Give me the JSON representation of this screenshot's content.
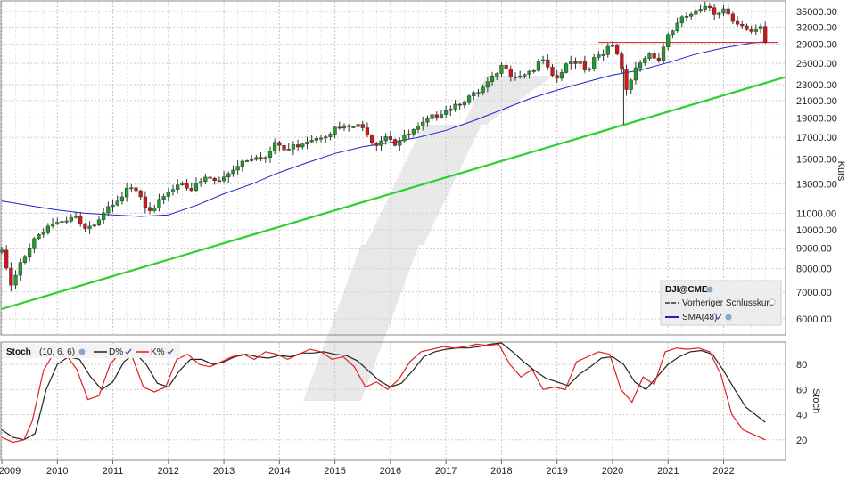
{
  "chart_data": [
    {
      "type": "candlestick",
      "symbol": "DJI@CME",
      "ylabel": "Kurs",
      "scale": "log",
      "ylim": [
        5500,
        37000
      ],
      "y_ticks": [
        6000,
        7000,
        8000,
        9000,
        10000,
        11000,
        13000,
        15000,
        17000,
        19000,
        21000,
        23000,
        26000,
        29000,
        32000,
        35000
      ],
      "y_tick_labels": [
        "6000.00",
        "7000.00",
        "8000.00",
        "9000.00",
        "10000.00",
        "11000.00",
        "13000.00",
        "15000.00",
        "17000.00",
        "19000.00",
        "21000.00",
        "23000.00",
        "26000.00",
        "29000.00",
        "32000.00",
        "35000.00"
      ],
      "x_labels": [
        "2009",
        "2010",
        "2011",
        "2012",
        "2013",
        "2014",
        "2015",
        "2016",
        "2017",
        "2018",
        "2019",
        "2020",
        "2021",
        "2022"
      ],
      "xlim": [
        2009.0,
        2023.1
      ],
      "up_color": "#1f9e2a",
      "down_color": "#d81418",
      "close_anchors": [
        [
          2009.0,
          8800
        ],
        [
          2009.18,
          7100
        ],
        [
          2009.35,
          8400
        ],
        [
          2009.6,
          9600
        ],
        [
          2009.9,
          10400
        ],
        [
          2010.1,
          10300
        ],
        [
          2010.35,
          10800
        ],
        [
          2010.45,
          9900
        ],
        [
          2010.6,
          10100
        ],
        [
          2010.9,
          11500
        ],
        [
          2011.3,
          12600
        ],
        [
          2011.45,
          12400
        ],
        [
          2011.6,
          11200
        ],
        [
          2011.72,
          10900
        ],
        [
          2011.9,
          12200
        ],
        [
          2012.25,
          13200
        ],
        [
          2012.42,
          12600
        ],
        [
          2012.7,
          13500
        ],
        [
          2012.9,
          13100
        ],
        [
          2013.3,
          14800
        ],
        [
          2013.6,
          15400
        ],
        [
          2013.75,
          15100
        ],
        [
          2013.95,
          16500
        ],
        [
          2014.1,
          15700
        ],
        [
          2014.5,
          16800
        ],
        [
          2014.8,
          17300
        ],
        [
          2014.99,
          17800
        ],
        [
          2015.4,
          18100
        ],
        [
          2015.6,
          17500
        ],
        [
          2015.7,
          16300
        ],
        [
          2015.95,
          17400
        ],
        [
          2016.08,
          16400
        ],
        [
          2016.5,
          17900
        ],
        [
          2016.9,
          19700
        ],
        [
          2017.2,
          20700
        ],
        [
          2017.6,
          21900
        ],
        [
          2017.95,
          24700
        ],
        [
          2018.05,
          26100
        ],
        [
          2018.2,
          24100
        ],
        [
          2018.55,
          25000
        ],
        [
          2018.75,
          26400
        ],
        [
          2018.95,
          23300
        ],
        [
          2019.2,
          25900
        ],
        [
          2019.4,
          26600
        ],
        [
          2019.55,
          24800
        ],
        [
          2019.65,
          26900
        ],
        [
          2019.95,
          28500
        ],
        [
          2020.05,
          28300
        ],
        [
          2020.13,
          26000
        ],
        [
          2020.25,
          22000
        ],
        [
          2020.45,
          25800
        ],
        [
          2020.7,
          27800
        ],
        [
          2020.83,
          26500
        ],
        [
          2020.99,
          30600
        ],
        [
          2021.3,
          33900
        ],
        [
          2021.55,
          34900
        ],
        [
          2021.75,
          35800
        ],
        [
          2021.85,
          34500
        ],
        [
          2022.0,
          36000
        ],
        [
          2022.15,
          33400
        ],
        [
          2022.3,
          33000
        ],
        [
          2022.45,
          31000
        ],
        [
          2022.55,
          30800
        ],
        [
          2022.65,
          32200
        ],
        [
          2022.75,
          29000
        ]
      ],
      "sma": {
        "name": "SMA(48)",
        "color": "#2222cc",
        "points": [
          [
            2009.0,
            11800
          ],
          [
            2009.5,
            11500
          ],
          [
            2010.0,
            11200
          ],
          [
            2010.5,
            11000
          ],
          [
            2011.0,
            10900
          ],
          [
            2011.5,
            10800
          ],
          [
            2012.0,
            10900
          ],
          [
            2012.5,
            11500
          ],
          [
            2013.0,
            12300
          ],
          [
            2013.5,
            13000
          ],
          [
            2014.0,
            13900
          ],
          [
            2014.5,
            14700
          ],
          [
            2015.0,
            15500
          ],
          [
            2015.5,
            16100
          ],
          [
            2016.0,
            16500
          ],
          [
            2016.5,
            17000
          ],
          [
            2017.0,
            17700
          ],
          [
            2017.5,
            18700
          ],
          [
            2018.0,
            19900
          ],
          [
            2018.5,
            21200
          ],
          [
            2019.0,
            22300
          ],
          [
            2019.5,
            23300
          ],
          [
            2020.0,
            24300
          ],
          [
            2020.5,
            25000
          ],
          [
            2021.0,
            26100
          ],
          [
            2021.5,
            27400
          ],
          [
            2022.0,
            28400
          ],
          [
            2022.5,
            29200
          ],
          [
            2022.75,
            29400
          ]
        ]
      },
      "trendline": {
        "color": "#2fcf2f",
        "from": [
          2009.0,
          6350
        ],
        "to": [
          2023.1,
          24000
        ]
      },
      "previous_close": {
        "name": "Vorheriger Schlusskurs",
        "color": "#d81418",
        "value": 29300,
        "from_x": 2019.75
      },
      "legend": {
        "title": "DJI@CME",
        "items": [
          "Vorheriger Schlusskurs",
          "SMA(48)"
        ]
      }
    },
    {
      "type": "line",
      "title": "Stoch",
      "params": "(10, 6, 6)",
      "ylabel": "Stoch",
      "ylim": [
        5,
        97
      ],
      "y_ticks": [
        20,
        40,
        60,
        80
      ],
      "series": [
        {
          "name": "D%",
          "color": "#222222",
          "points": [
            [
              2009.0,
              28
            ],
            [
              2009.2,
              22
            ],
            [
              2009.4,
              20
            ],
            [
              2009.6,
              25
            ],
            [
              2009.8,
              60
            ],
            [
              2010.0,
              80
            ],
            [
              2010.2,
              86
            ],
            [
              2010.4,
              84
            ],
            [
              2010.6,
              70
            ],
            [
              2010.8,
              60
            ],
            [
              2011.0,
              66
            ],
            [
              2011.2,
              82
            ],
            [
              2011.4,
              89
            ],
            [
              2011.6,
              80
            ],
            [
              2011.8,
              65
            ],
            [
              2012.0,
              62
            ],
            [
              2012.2,
              75
            ],
            [
              2012.4,
              84
            ],
            [
              2012.6,
              84
            ],
            [
              2012.8,
              80
            ],
            [
              2013.0,
              82
            ],
            [
              2013.2,
              86
            ],
            [
              2013.4,
              88
            ],
            [
              2013.6,
              86
            ],
            [
              2013.8,
              85
            ],
            [
              2014.0,
              87
            ],
            [
              2014.2,
              86
            ],
            [
              2014.4,
              89
            ],
            [
              2014.6,
              89
            ],
            [
              2014.8,
              90
            ],
            [
              2015.0,
              88
            ],
            [
              2015.2,
              87
            ],
            [
              2015.4,
              83
            ],
            [
              2015.6,
              75
            ],
            [
              2015.8,
              67
            ],
            [
              2016.0,
              62
            ],
            [
              2016.2,
              65
            ],
            [
              2016.4,
              75
            ],
            [
              2016.6,
              86
            ],
            [
              2016.8,
              90
            ],
            [
              2017.0,
              92
            ],
            [
              2017.2,
              93
            ],
            [
              2017.4,
              93
            ],
            [
              2017.6,
              94
            ],
            [
              2017.8,
              96
            ],
            [
              2018.0,
              97
            ],
            [
              2018.2,
              90
            ],
            [
              2018.4,
              82
            ],
            [
              2018.6,
              75
            ],
            [
              2018.8,
              69
            ],
            [
              2019.0,
              66
            ],
            [
              2019.2,
              63
            ],
            [
              2019.4,
              72
            ],
            [
              2019.6,
              78
            ],
            [
              2019.8,
              85
            ],
            [
              2020.0,
              86
            ],
            [
              2020.2,
              80
            ],
            [
              2020.4,
              66
            ],
            [
              2020.6,
              60
            ],
            [
              2020.8,
              70
            ],
            [
              2021.0,
              80
            ],
            [
              2021.2,
              86
            ],
            [
              2021.4,
              90
            ],
            [
              2021.6,
              91
            ],
            [
              2021.8,
              88
            ],
            [
              2022.0,
              75
            ],
            [
              2022.2,
              60
            ],
            [
              2022.4,
              46
            ],
            [
              2022.75,
              34
            ]
          ]
        },
        {
          "name": "K%",
          "color": "#e02020",
          "points": [
            [
              2009.0,
              22
            ],
            [
              2009.2,
              18
            ],
            [
              2009.4,
              20
            ],
            [
              2009.55,
              35
            ],
            [
              2009.75,
              75
            ],
            [
              2009.95,
              90
            ],
            [
              2010.15,
              88
            ],
            [
              2010.35,
              76
            ],
            [
              2010.55,
              52
            ],
            [
              2010.75,
              55
            ],
            [
              2010.95,
              80
            ],
            [
              2011.15,
              90
            ],
            [
              2011.35,
              86
            ],
            [
              2011.55,
              62
            ],
            [
              2011.75,
              58
            ],
            [
              2011.95,
              62
            ],
            [
              2012.15,
              84
            ],
            [
              2012.35,
              88
            ],
            [
              2012.55,
              80
            ],
            [
              2012.75,
              78
            ],
            [
              2012.95,
              82
            ],
            [
              2013.15,
              86
            ],
            [
              2013.35,
              88
            ],
            [
              2013.55,
              84
            ],
            [
              2013.75,
              90
            ],
            [
              2013.95,
              88
            ],
            [
              2014.15,
              84
            ],
            [
              2014.35,
              88
            ],
            [
              2014.55,
              92
            ],
            [
              2014.75,
              90
            ],
            [
              2014.95,
              84
            ],
            [
              2015.15,
              86
            ],
            [
              2015.35,
              78
            ],
            [
              2015.55,
              62
            ],
            [
              2015.75,
              66
            ],
            [
              2015.95,
              60
            ],
            [
              2016.15,
              68
            ],
            [
              2016.35,
              82
            ],
            [
              2016.55,
              90
            ],
            [
              2016.75,
              92
            ],
            [
              2016.95,
              94
            ],
            [
              2017.15,
              93
            ],
            [
              2017.35,
              94
            ],
            [
              2017.55,
              96
            ],
            [
              2017.75,
              95
            ],
            [
              2017.95,
              96
            ],
            [
              2018.15,
              80
            ],
            [
              2018.35,
              70
            ],
            [
              2018.55,
              76
            ],
            [
              2018.75,
              60
            ],
            [
              2018.95,
              62
            ],
            [
              2019.15,
              60
            ],
            [
              2019.35,
              82
            ],
            [
              2019.55,
              86
            ],
            [
              2019.75,
              90
            ],
            [
              2019.95,
              88
            ],
            [
              2020.15,
              60
            ],
            [
              2020.35,
              50
            ],
            [
              2020.55,
              70
            ],
            [
              2020.75,
              64
            ],
            [
              2020.95,
              90
            ],
            [
              2021.15,
              93
            ],
            [
              2021.35,
              92
            ],
            [
              2021.55,
              93
            ],
            [
              2021.75,
              90
            ],
            [
              2021.95,
              72
            ],
            [
              2022.15,
              40
            ],
            [
              2022.35,
              28
            ],
            [
              2022.55,
              24
            ],
            [
              2022.75,
              20
            ]
          ]
        }
      ]
    }
  ]
}
